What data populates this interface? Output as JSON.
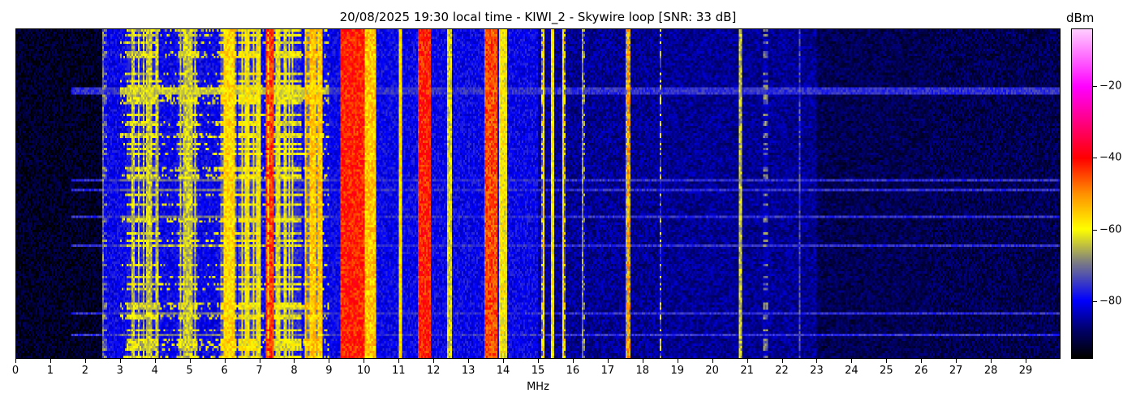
{
  "chart_data": {
    "type": "heatmap",
    "title": "20/08/2025 19:30 local time - KIWI_2 - Skywire loop [SNR: 33 dB]",
    "xlabel": "MHz",
    "ylabel": "",
    "xlim": [
      0,
      30
    ],
    "x_ticks": [
      "0",
      "1",
      "2",
      "3",
      "4",
      "5",
      "6",
      "7",
      "8",
      "9",
      "10",
      "11",
      "12",
      "13",
      "14",
      "15",
      "16",
      "17",
      "18",
      "19",
      "20",
      "21",
      "22",
      "23",
      "24",
      "25",
      "26",
      "27",
      "28",
      "29"
    ],
    "colorbar": {
      "label": "dBm",
      "range": [
        -96,
        -4
      ],
      "ticks": [
        -20,
        -40,
        -60,
        -80
      ],
      "tick_labels": [
        "−20",
        "−40",
        "−60",
        "−80"
      ],
      "colormap": [
        {
          "dbm": -96,
          "color": "#000000"
        },
        {
          "dbm": -88,
          "color": "#00006e"
        },
        {
          "dbm": -80,
          "color": "#0000ff"
        },
        {
          "dbm": -69,
          "color": "#808080"
        },
        {
          "dbm": -60,
          "color": "#ffff00"
        },
        {
          "dbm": -50,
          "color": "#ff9000"
        },
        {
          "dbm": -40,
          "color": "#ff0000"
        },
        {
          "dbm": -20,
          "color": "#ff00ff"
        },
        {
          "dbm": -4,
          "color": "#ffccff"
        }
      ]
    },
    "noise_floor_regions": [
      {
        "from_mhz": 0,
        "to_mhz": 2.5,
        "dbm": -93
      },
      {
        "from_mhz": 2.5,
        "to_mhz": 15,
        "dbm": -80
      },
      {
        "from_mhz": 15,
        "to_mhz": 23,
        "dbm": -86
      },
      {
        "from_mhz": 23,
        "to_mhz": 30,
        "dbm": -90
      }
    ],
    "signals": [
      {
        "from_mhz": 2.5,
        "to_mhz": 2.6,
        "dbm": -70
      },
      {
        "from_mhz": 3.2,
        "to_mhz": 4.1,
        "dbm": -64
      },
      {
        "from_mhz": 4.7,
        "to_mhz": 5.2,
        "dbm": -64
      },
      {
        "from_mhz": 5.9,
        "to_mhz": 6.3,
        "dbm": -57
      },
      {
        "from_mhz": 6.4,
        "to_mhz": 7.0,
        "dbm": -60
      },
      {
        "from_mhz": 7.2,
        "to_mhz": 7.4,
        "dbm": -44
      },
      {
        "from_mhz": 7.4,
        "to_mhz": 8.2,
        "dbm": -62
      },
      {
        "from_mhz": 8.3,
        "to_mhz": 8.8,
        "dbm": -55
      },
      {
        "from_mhz": 9.35,
        "to_mhz": 10.0,
        "dbm": -42
      },
      {
        "from_mhz": 10.0,
        "to_mhz": 10.3,
        "dbm": -55
      },
      {
        "from_mhz": 11.0,
        "to_mhz": 11.05,
        "dbm": -58
      },
      {
        "from_mhz": 11.55,
        "to_mhz": 11.9,
        "dbm": -42
      },
      {
        "from_mhz": 12.4,
        "to_mhz": 12.5,
        "dbm": -62
      },
      {
        "from_mhz": 13.5,
        "to_mhz": 13.8,
        "dbm": -45
      },
      {
        "from_mhz": 13.9,
        "to_mhz": 14.1,
        "dbm": -60
      },
      {
        "from_mhz": 15.1,
        "to_mhz": 15.15,
        "dbm": -58
      },
      {
        "from_mhz": 15.4,
        "to_mhz": 15.45,
        "dbm": -60
      },
      {
        "from_mhz": 15.7,
        "to_mhz": 15.75,
        "dbm": -58
      },
      {
        "from_mhz": 16.3,
        "to_mhz": 16.33,
        "dbm": -68
      },
      {
        "from_mhz": 17.55,
        "to_mhz": 17.65,
        "dbm": -52
      },
      {
        "from_mhz": 18.5,
        "to_mhz": 18.53,
        "dbm": -62
      },
      {
        "from_mhz": 20.8,
        "to_mhz": 20.83,
        "dbm": -64
      },
      {
        "from_mhz": 21.5,
        "to_mhz": 21.6,
        "dbm": -70
      },
      {
        "from_mhz": 22.5,
        "to_mhz": 22.53,
        "dbm": -74
      }
    ],
    "horizontal_interference": {
      "from_mhz": 1.6,
      "to_mhz": 30,
      "dbm": -76
    }
  }
}
